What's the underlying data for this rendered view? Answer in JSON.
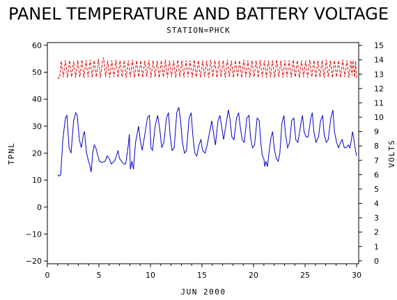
{
  "chart_data": {
    "type": "line",
    "title": "PANEL TEMPERATURE AND BATTERY VOLTAGE",
    "subtitle": "STATION=PHCK",
    "xlabel": "JUN 2000",
    "ylabel_left": "TPNL",
    "ylabel_right": "VOLTS",
    "xlim": [
      0,
      30.2
    ],
    "ylim_left": [
      -21,
      61
    ],
    "ylim_right": [
      -0.2,
      15.2
    ],
    "x_ticks": [
      0,
      5,
      10,
      15,
      20,
      25,
      30
    ],
    "y_ticks_left": [
      -20,
      -10,
      0,
      10,
      20,
      30,
      40,
      50,
      60
    ],
    "y_ticks_right": [
      0,
      1,
      2,
      3,
      4,
      5,
      6,
      7,
      8,
      9,
      10,
      11,
      12,
      13,
      14,
      15
    ],
    "grid": false,
    "series": [
      {
        "axis": "left",
        "color": "#0000cc",
        "points": [
          [
            1.0,
            12
          ],
          [
            1.15,
            11.5
          ],
          [
            1.3,
            12
          ],
          [
            1.5,
            25
          ],
          [
            1.75,
            33
          ],
          [
            1.9,
            34
          ],
          [
            2.1,
            22
          ],
          [
            2.3,
            20
          ],
          [
            2.55,
            32
          ],
          [
            2.75,
            35
          ],
          [
            2.9,
            34
          ],
          [
            3.1,
            25
          ],
          [
            3.3,
            22
          ],
          [
            3.5,
            27
          ],
          [
            3.6,
            28
          ],
          [
            3.8,
            20
          ],
          [
            4.0,
            17
          ],
          [
            4.15,
            15
          ],
          [
            4.25,
            13
          ],
          [
            4.4,
            20
          ],
          [
            4.55,
            23
          ],
          [
            4.7,
            22
          ],
          [
            4.9,
            19
          ],
          [
            5.05,
            17
          ],
          [
            5.3,
            16.5
          ],
          [
            5.6,
            17
          ],
          [
            5.8,
            19
          ],
          [
            6.0,
            18
          ],
          [
            6.2,
            16
          ],
          [
            6.5,
            17
          ],
          [
            6.7,
            19
          ],
          [
            6.85,
            21
          ],
          [
            7.0,
            18
          ],
          [
            7.2,
            17
          ],
          [
            7.4,
            16
          ],
          [
            7.6,
            16
          ],
          [
            7.85,
            23
          ],
          [
            7.95,
            27
          ],
          [
            8.05,
            14
          ],
          [
            8.2,
            17
          ],
          [
            8.35,
            14
          ],
          [
            8.55,
            24
          ],
          [
            8.75,
            28
          ],
          [
            8.85,
            30
          ],
          [
            9.0,
            25
          ],
          [
            9.2,
            21
          ],
          [
            9.5,
            28
          ],
          [
            9.7,
            33
          ],
          [
            9.9,
            34
          ],
          [
            10.05,
            22
          ],
          [
            10.2,
            21
          ],
          [
            10.45,
            30
          ],
          [
            10.7,
            34
          ],
          [
            10.9,
            29
          ],
          [
            11.1,
            22
          ],
          [
            11.3,
            24
          ],
          [
            11.55,
            33
          ],
          [
            11.75,
            35
          ],
          [
            11.9,
            27
          ],
          [
            12.1,
            21
          ],
          [
            12.3,
            22
          ],
          [
            12.55,
            35
          ],
          [
            12.75,
            37
          ],
          [
            12.9,
            33
          ],
          [
            13.1,
            24
          ],
          [
            13.3,
            20
          ],
          [
            13.5,
            21
          ],
          [
            13.75,
            33
          ],
          [
            13.95,
            35
          ],
          [
            14.1,
            27
          ],
          [
            14.3,
            20
          ],
          [
            14.5,
            19
          ],
          [
            14.7,
            23
          ],
          [
            14.9,
            25
          ],
          [
            15.05,
            21
          ],
          [
            15.3,
            20
          ],
          [
            15.5,
            23
          ],
          [
            15.7,
            27
          ],
          [
            15.95,
            32
          ],
          [
            16.1,
            28
          ],
          [
            16.3,
            23
          ],
          [
            16.55,
            32
          ],
          [
            16.75,
            34
          ],
          [
            16.9,
            30
          ],
          [
            17.1,
            25
          ],
          [
            17.3,
            30
          ],
          [
            17.55,
            36
          ],
          [
            17.7,
            33
          ],
          [
            17.9,
            26
          ],
          [
            18.1,
            25
          ],
          [
            18.35,
            33
          ],
          [
            18.55,
            35
          ],
          [
            18.7,
            30
          ],
          [
            18.9,
            25
          ],
          [
            19.1,
            24
          ],
          [
            19.35,
            33
          ],
          [
            19.55,
            34
          ],
          [
            19.7,
            26
          ],
          [
            19.9,
            22
          ],
          [
            20.1,
            23
          ],
          [
            20.35,
            33
          ],
          [
            20.55,
            32
          ],
          [
            20.7,
            24
          ],
          [
            20.85,
            19
          ],
          [
            21.0,
            18
          ],
          [
            21.1,
            15
          ],
          [
            21.2,
            17
          ],
          [
            21.35,
            15
          ],
          [
            21.5,
            20
          ],
          [
            21.7,
            26
          ],
          [
            21.85,
            28
          ],
          [
            22.0,
            22
          ],
          [
            22.2,
            18
          ],
          [
            22.4,
            17
          ],
          [
            22.55,
            20
          ],
          [
            22.75,
            31
          ],
          [
            22.95,
            34
          ],
          [
            23.1,
            27
          ],
          [
            23.3,
            22
          ],
          [
            23.5,
            24
          ],
          [
            23.7,
            32
          ],
          [
            23.9,
            33
          ],
          [
            24.1,
            25
          ],
          [
            24.3,
            24
          ],
          [
            24.55,
            30
          ],
          [
            24.75,
            34
          ],
          [
            24.9,
            28
          ],
          [
            25.1,
            26
          ],
          [
            25.3,
            26
          ],
          [
            25.55,
            33
          ],
          [
            25.7,
            35
          ],
          [
            25.85,
            28
          ],
          [
            26.05,
            24
          ],
          [
            26.3,
            26
          ],
          [
            26.5,
            32
          ],
          [
            26.7,
            34
          ],
          [
            26.85,
            27
          ],
          [
            27.05,
            24
          ],
          [
            27.25,
            25
          ],
          [
            27.5,
            33
          ],
          [
            27.7,
            36
          ],
          [
            27.85,
            28
          ],
          [
            28.05,
            24
          ],
          [
            28.25,
            22
          ],
          [
            28.45,
            24
          ],
          [
            28.6,
            25
          ],
          [
            28.8,
            22
          ],
          [
            29.0,
            22
          ],
          [
            29.2,
            23
          ],
          [
            29.35,
            22
          ],
          [
            29.5,
            25
          ],
          [
            29.6,
            28
          ],
          [
            29.7,
            26
          ],
          [
            29.85,
            22
          ],
          [
            30.0,
            19
          ]
        ]
      },
      {
        "axis": "right",
        "color": "#dd0000",
        "points": [
          [
            1.0,
            12.8
          ],
          [
            1.1,
            12.7
          ],
          [
            1.2,
            12.75
          ],
          [
            1.35,
            13.9
          ],
          [
            1.55,
            12.8
          ],
          [
            1.75,
            13.95
          ],
          [
            1.95,
            12.75
          ],
          [
            2.15,
            13.95
          ],
          [
            2.35,
            12.8
          ],
          [
            2.55,
            13.9
          ],
          [
            2.75,
            12.75
          ],
          [
            2.95,
            13.95
          ],
          [
            3.15,
            12.8
          ],
          [
            3.35,
            14.0
          ],
          [
            3.55,
            12.75
          ],
          [
            3.75,
            13.95
          ],
          [
            3.95,
            12.8
          ],
          [
            4.15,
            14.0
          ],
          [
            4.35,
            12.75
          ],
          [
            4.55,
            13.95
          ],
          [
            4.75,
            12.8
          ],
          [
            4.95,
            14.05
          ],
          [
            5.15,
            12.75
          ],
          [
            5.35,
            13.95
          ],
          [
            5.45,
            14.15
          ],
          [
            5.55,
            13.6
          ],
          [
            5.65,
            12.8
          ],
          [
            5.85,
            13.95
          ],
          [
            6.05,
            12.75
          ],
          [
            6.25,
            13.95
          ],
          [
            6.45,
            12.8
          ],
          [
            6.65,
            14.0
          ],
          [
            6.85,
            12.75
          ],
          [
            7.05,
            13.95
          ],
          [
            7.25,
            12.8
          ],
          [
            7.45,
            13.95
          ],
          [
            7.65,
            12.75
          ],
          [
            7.85,
            13.95
          ],
          [
            8.05,
            12.8
          ],
          [
            8.25,
            14.0
          ],
          [
            8.45,
            12.75
          ],
          [
            8.65,
            13.95
          ],
          [
            8.85,
            12.8
          ],
          [
            9.05,
            13.95
          ],
          [
            9.25,
            12.75
          ],
          [
            9.45,
            13.95
          ],
          [
            9.65,
            12.8
          ],
          [
            9.85,
            14.0
          ],
          [
            10.05,
            12.75
          ],
          [
            10.25,
            13.95
          ],
          [
            10.45,
            12.8
          ],
          [
            10.65,
            13.95
          ],
          [
            10.85,
            12.75
          ],
          [
            11.05,
            13.95
          ],
          [
            11.25,
            12.8
          ],
          [
            11.45,
            14.0
          ],
          [
            11.65,
            12.75
          ],
          [
            11.85,
            13.95
          ],
          [
            12.05,
            12.8
          ],
          [
            12.25,
            13.95
          ],
          [
            12.45,
            12.75
          ],
          [
            12.65,
            14.0
          ],
          [
            12.85,
            12.8
          ],
          [
            13.05,
            13.95
          ],
          [
            13.25,
            12.75
          ],
          [
            13.45,
            13.95
          ],
          [
            13.65,
            12.8
          ],
          [
            13.85,
            13.95
          ],
          [
            14.05,
            12.75
          ],
          [
            14.25,
            14.0
          ],
          [
            14.45,
            12.8
          ],
          [
            14.65,
            13.95
          ],
          [
            14.85,
            12.75
          ],
          [
            15.05,
            13.95
          ],
          [
            15.25,
            12.8
          ],
          [
            15.45,
            13.95
          ],
          [
            15.65,
            12.75
          ],
          [
            15.85,
            14.0
          ],
          [
            16.05,
            12.8
          ],
          [
            16.25,
            13.95
          ],
          [
            16.45,
            12.75
          ],
          [
            16.65,
            13.95
          ],
          [
            16.85,
            12.8
          ],
          [
            17.05,
            13.95
          ],
          [
            17.25,
            12.75
          ],
          [
            17.45,
            14.0
          ],
          [
            17.65,
            12.8
          ],
          [
            17.85,
            13.95
          ],
          [
            18.05,
            12.75
          ],
          [
            18.25,
            13.95
          ],
          [
            18.45,
            12.8
          ],
          [
            18.65,
            13.95
          ],
          [
            18.85,
            12.75
          ],
          [
            19.05,
            14.0
          ],
          [
            19.25,
            12.8
          ],
          [
            19.45,
            13.95
          ],
          [
            19.65,
            12.75
          ],
          [
            19.85,
            13.95
          ],
          [
            20.05,
            12.8
          ],
          [
            20.25,
            13.95
          ],
          [
            20.45,
            12.75
          ],
          [
            20.65,
            14.0
          ],
          [
            20.85,
            12.8
          ],
          [
            21.05,
            13.95
          ],
          [
            21.25,
            12.75
          ],
          [
            21.45,
            13.95
          ],
          [
            21.65,
            12.8
          ],
          [
            21.85,
            13.95
          ],
          [
            22.05,
            12.75
          ],
          [
            22.25,
            14.0
          ],
          [
            22.45,
            12.8
          ],
          [
            22.65,
            13.95
          ],
          [
            22.85,
            12.75
          ],
          [
            23.05,
            13.95
          ],
          [
            23.25,
            12.8
          ],
          [
            23.45,
            13.95
          ],
          [
            23.65,
            12.75
          ],
          [
            23.85,
            14.0
          ],
          [
            24.05,
            12.8
          ],
          [
            24.25,
            13.95
          ],
          [
            24.45,
            12.75
          ],
          [
            24.65,
            13.95
          ],
          [
            24.85,
            12.8
          ],
          [
            25.05,
            13.95
          ],
          [
            25.25,
            12.75
          ],
          [
            25.45,
            14.0
          ],
          [
            25.65,
            12.8
          ],
          [
            25.85,
            13.95
          ],
          [
            26.05,
            12.75
          ],
          [
            26.25,
            13.95
          ],
          [
            26.45,
            12.8
          ],
          [
            26.65,
            13.95
          ],
          [
            26.85,
            12.75
          ],
          [
            27.05,
            14.0
          ],
          [
            27.25,
            12.8
          ],
          [
            27.45,
            13.95
          ],
          [
            27.65,
            12.75
          ],
          [
            27.85,
            13.95
          ],
          [
            28.05,
            12.8
          ],
          [
            28.25,
            13.95
          ],
          [
            28.45,
            12.75
          ],
          [
            28.65,
            14.0
          ],
          [
            28.85,
            12.8
          ],
          [
            29.05,
            13.95
          ],
          [
            29.25,
            12.75
          ],
          [
            29.45,
            13.95
          ],
          [
            29.55,
            12.9
          ],
          [
            29.65,
            13.95
          ],
          [
            29.8,
            12.8
          ],
          [
            29.9,
            13.9
          ],
          [
            30.0,
            12.75
          ]
        ]
      }
    ]
  }
}
